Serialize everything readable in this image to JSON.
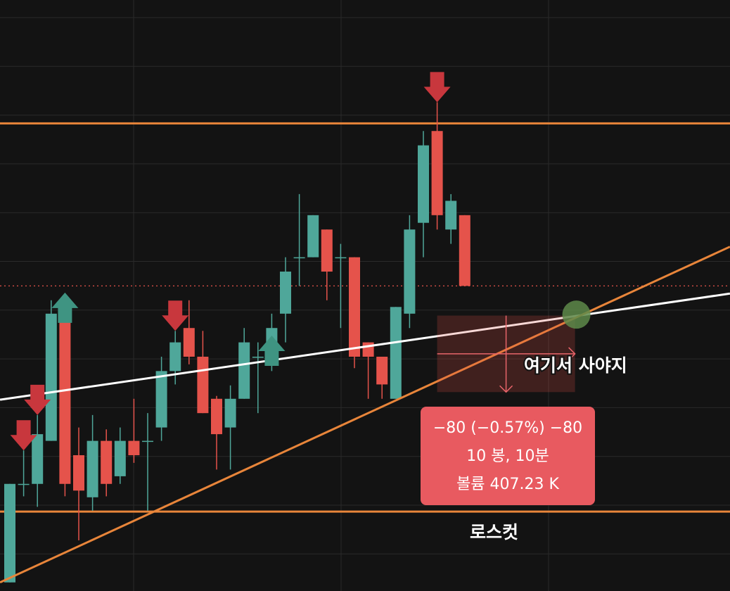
{
  "chart_data": {
    "type": "candlestick",
    "ylim": [
      13682,
      14300
    ],
    "colors": {
      "up": "#4fa79a",
      "down": "#e5534b",
      "level": "#e8853a",
      "trend": "#ffffff",
      "current": "#e5534b",
      "marker": "#5e8a4a"
    },
    "series": {
      "open": [
        13691,
        13794,
        13794,
        13839,
        13972,
        13824,
        13780,
        13839,
        13802,
        13839,
        13839,
        13853,
        13912,
        13957,
        13927,
        13883,
        13853,
        13883,
        13927,
        13927,
        13972,
        14031,
        14031,
        14060,
        14031,
        14031,
        13942,
        13927,
        13883,
        13972,
        14067,
        14163,
        14060,
        14075
      ],
      "high": [
        13794,
        13829,
        13866,
        13986,
        13984,
        13853,
        13866,
        13851,
        13853,
        13883,
        13868,
        13927,
        13954,
        13986,
        13954,
        13886,
        13897,
        13957,
        13942,
        13972,
        14031,
        14097,
        14075,
        14060,
        14045,
        14031,
        13942,
        13927,
        13979,
        14075,
        14163,
        14193,
        14097,
        14075
      ],
      "low": [
        13691,
        13781,
        13770,
        13839,
        13781,
        13735,
        13766,
        13781,
        13794,
        13816,
        13766,
        13839,
        13898,
        13919,
        13868,
        13809,
        13809,
        13883,
        13868,
        13912,
        13942,
        14001,
        14031,
        13986,
        13957,
        13915,
        13883,
        13883,
        13883,
        13957,
        14031,
        14060,
        14045,
        14001
      ],
      "close": [
        13794,
        13794,
        13846,
        13972,
        13794,
        13787,
        13839,
        13794,
        13839,
        13824,
        13839,
        13912,
        13942,
        13927,
        13868,
        13846,
        13883,
        13942,
        13927,
        13957,
        14016,
        14031,
        14075,
        14016,
        14031,
        13927,
        13927,
        13898,
        13979,
        14060,
        14148,
        14075,
        14090,
        14001
      ]
    },
    "levels": [
      14171,
      13765
    ],
    "current_price": 14001,
    "trend_lines": [
      {
        "x": [
          -0.71,
          52.24
        ],
        "y": [
          13882,
          13993
        ],
        "color": "#ffffff"
      },
      {
        "x": [
          -0.71,
          52.24
        ],
        "y": [
          13691,
          14042
        ],
        "color": "#e8853a"
      }
    ],
    "sell_signals": [
      1,
      2,
      12,
      31
    ],
    "buy_signals": [
      4,
      19
    ],
    "measure": {
      "from_index": 31,
      "to_index": 41,
      "from_price": 13970,
      "to_price": 13890,
      "lines": [
        "−80 (−0.57%) −80",
        "10 봉, 10분",
        "볼륨 407.23 K"
      ]
    },
    "marker": {
      "x": 41.1,
      "price": 13971
    },
    "annotations": [
      "여기서 사야지",
      "로스컷"
    ]
  }
}
